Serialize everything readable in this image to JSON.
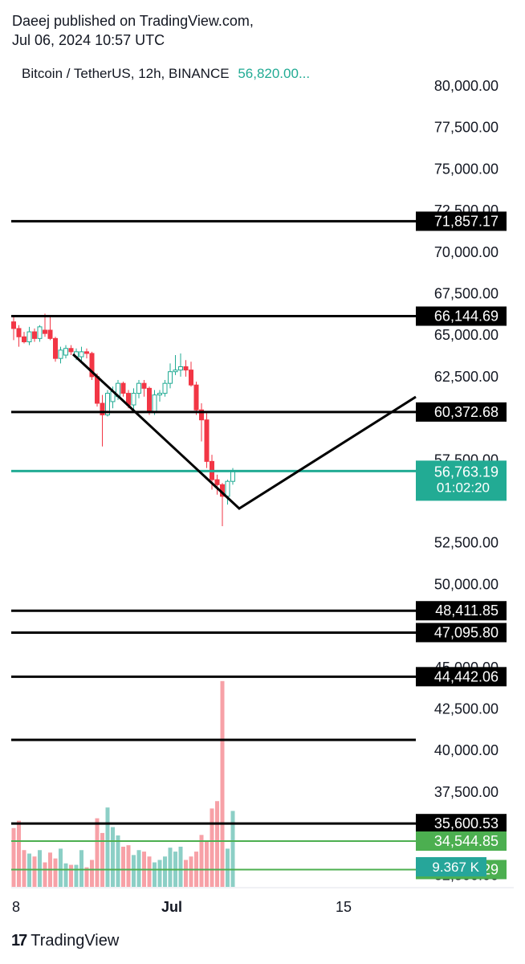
{
  "header": {
    "publisher_line": "Daeej published on TradingView.com,",
    "date_line": "Jul 06, 2024 10:57 UTC"
  },
  "legend": {
    "symbol": "Bitcoin / TetherUS, 12h, BINANCE",
    "price": "56,820.00..."
  },
  "footer": {
    "brand": "TradingView",
    "logo": "17"
  },
  "colors": {
    "up": "#22ab94",
    "down": "#f23645",
    "up_volume": "#8ccfc6",
    "down_volume": "#f7a1a7",
    "level_line": "#000000",
    "current_line": "#22ab94",
    "green_line": "#4caf50",
    "label_black": "#000000",
    "label_green": "#22ab94",
    "label_teal": "#26a69a"
  },
  "chart_data": {
    "type": "candlestick",
    "timeframe": "12h",
    "y_axis": {
      "range": [
        31500,
        81500
      ],
      "ticks": [
        "80,000.00",
        "77,500.00",
        "75,000.00",
        "72,500.00",
        "70,000.00",
        "67,500.00",
        "65,000.00",
        "62,500.00",
        "57,500.00",
        "52,500.00",
        "50,000.00",
        "45,000.00",
        "42,500.00",
        "40,000.00",
        "37,500.00",
        "32,500.00"
      ]
    },
    "x_axis": {
      "ticks": [
        "8",
        "Jul",
        "15"
      ]
    },
    "candles": [
      [
        65800,
        66100,
        64700,
        65400
      ],
      [
        65400,
        65600,
        64300,
        64900
      ],
      [
        64900,
        65200,
        64500,
        64600
      ],
      [
        64600,
        65500,
        64400,
        65200
      ],
      [
        65200,
        65400,
        64600,
        64800
      ],
      [
        64800,
        65600,
        64600,
        65500
      ],
      [
        65300,
        66300,
        64900,
        65100
      ],
      [
        65300,
        66200,
        64700,
        64800
      ],
      [
        64800,
        64900,
        63400,
        63600
      ],
      [
        63600,
        64300,
        63300,
        64100
      ],
      [
        63800,
        64400,
        63600,
        64200
      ],
      [
        64200,
        64400,
        63800,
        64000
      ],
      [
        63700,
        64200,
        63500,
        64000
      ],
      [
        63700,
        64300,
        63400,
        64000
      ],
      [
        64000,
        64200,
        63600,
        63900
      ],
      [
        63900,
        64000,
        62300,
        62500
      ],
      [
        62500,
        62700,
        60700,
        60900
      ],
      [
        60900,
        61400,
        58300,
        60200
      ],
      [
        60200,
        61700,
        60100,
        61500
      ],
      [
        61000,
        61900,
        60600,
        61600
      ],
      [
        61300,
        62300,
        61100,
        62100
      ],
      [
        62100,
        62200,
        61300,
        61500
      ],
      [
        61500,
        61700,
        60600,
        60800
      ],
      [
        60800,
        61800,
        60500,
        61500
      ],
      [
        61500,
        62300,
        61200,
        62100
      ],
      [
        62100,
        62300,
        61300,
        61800
      ],
      [
        61800,
        61900,
        60200,
        60400
      ],
      [
        60400,
        61700,
        60200,
        61400
      ],
      [
        61400,
        61700,
        61000,
        61500
      ],
      [
        61500,
        62300,
        61300,
        62100
      ],
      [
        62100,
        63300,
        61800,
        62800
      ],
      [
        62800,
        63800,
        62600,
        62900
      ],
      [
        62900,
        63900,
        62500,
        63100
      ],
      [
        63100,
        63500,
        62500,
        62900
      ],
      [
        62900,
        63400,
        61900,
        62000
      ],
      [
        62000,
        62200,
        60200,
        60500
      ],
      [
        60500,
        60900,
        58600,
        59900
      ],
      [
        59900,
        60300,
        57000,
        57400
      ],
      [
        57400,
        57800,
        55700,
        56300
      ],
      [
        56300,
        56600,
        55400,
        56000
      ],
      [
        56000,
        56100,
        53500,
        55300
      ],
      [
        55300,
        56300,
        54800,
        56200
      ],
      [
        56200,
        57000,
        56000,
        56820
      ]
    ],
    "volumes": [
      1.2,
      1.35,
      0.75,
      0.68,
      0.62,
      0.75,
      0.5,
      0.7,
      0.58,
      0.78,
      0.48,
      0.45,
      0.45,
      0.75,
      0.4,
      0.55,
      1.4,
      1.1,
      1.62,
      1.22,
      1.05,
      0.82,
      0.85,
      0.65,
      0.75,
      0.72,
      0.62,
      0.5,
      0.55,
      0.62,
      0.8,
      0.72,
      0.82,
      0.55,
      0.62,
      0.72,
      1.06,
      0.95,
      1.6,
      1.75,
      4.2,
      0.78,
      1.55
    ],
    "horizontal_levels": [
      {
        "label": "71,857.17",
        "style": "black"
      },
      {
        "label": "66,144.69",
        "style": "black"
      },
      {
        "label": "60,372.68",
        "style": "black"
      },
      {
        "label": "48,411.85",
        "style": "black"
      },
      {
        "label": "47,095.80",
        "style": "black"
      },
      {
        "label": "44,442.06",
        "style": "black"
      },
      {
        "label": "",
        "style": "black"
      },
      {
        "label": "35,600.53",
        "style": "black"
      },
      {
        "label": "34,544.85",
        "style": "green"
      },
      {
        "label": "32,831.29",
        "style": "green"
      }
    ],
    "current_price": {
      "price": "56,820.00",
      "countdown": "01:02:20",
      "secondary": "56,763.19"
    },
    "volume_label": "9.367 K",
    "drawing": "V-shaped trend lines drawn on chart"
  }
}
